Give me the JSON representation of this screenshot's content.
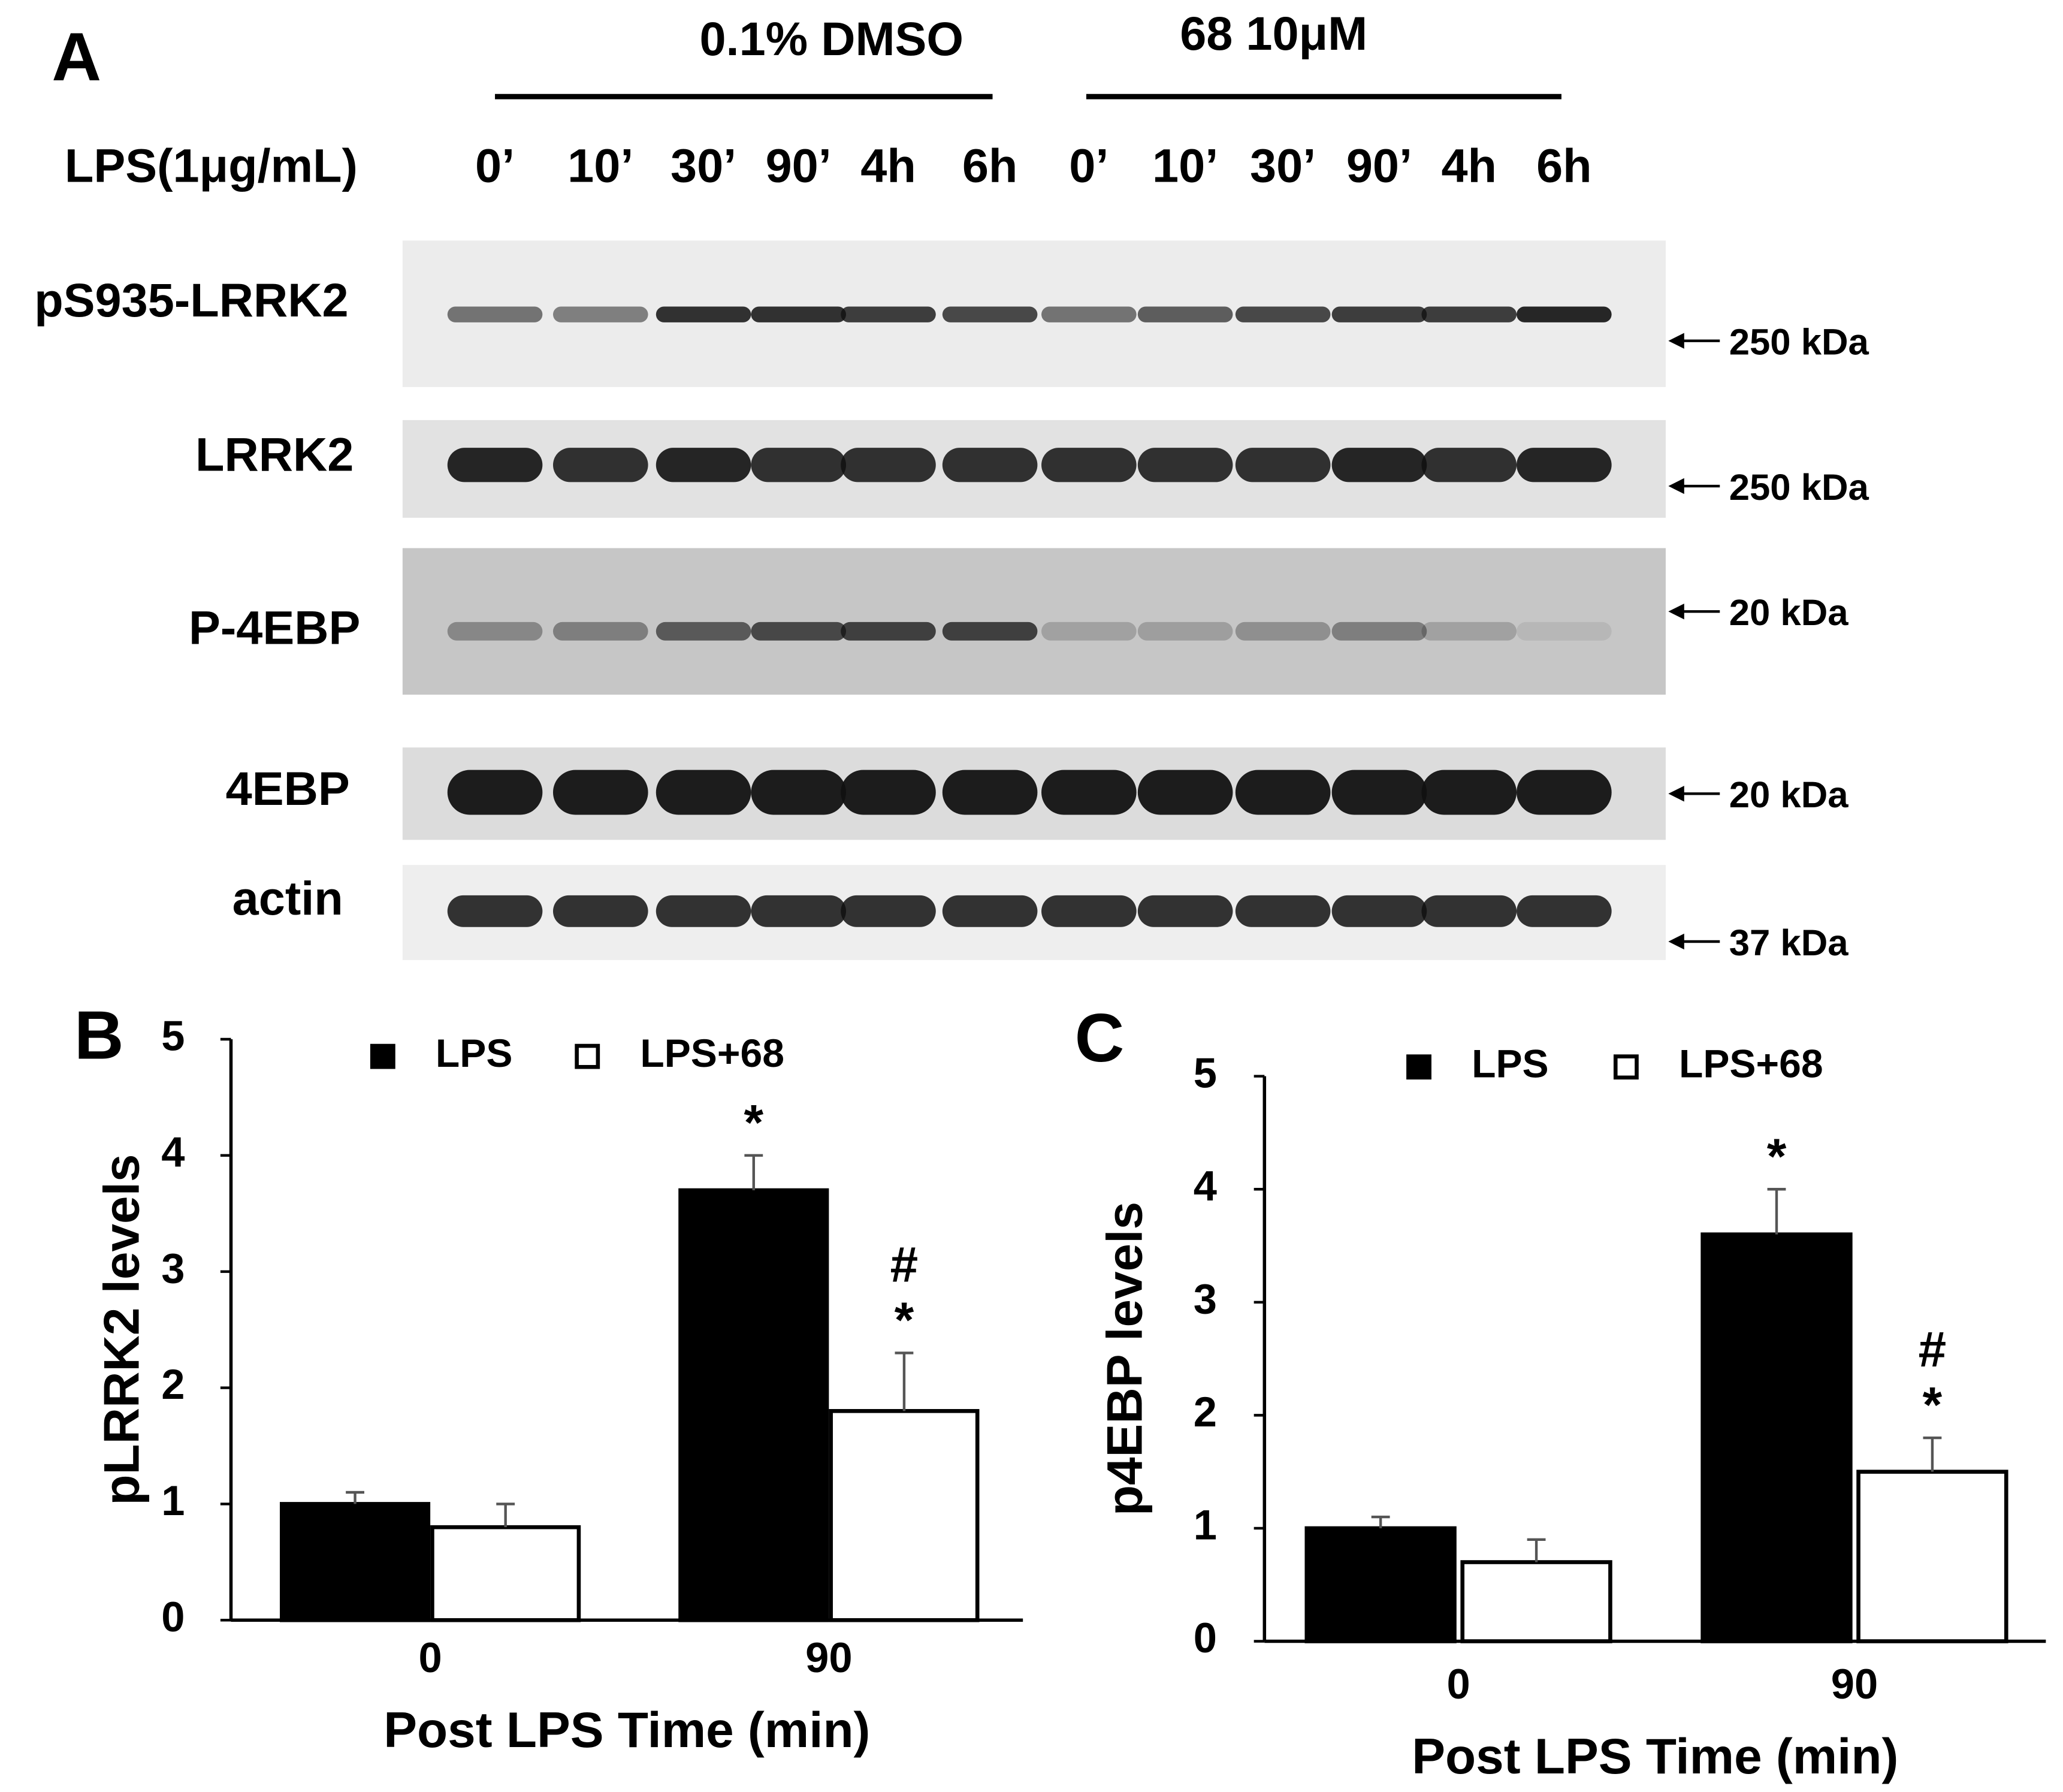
{
  "figure_a": {
    "panel_label": "A",
    "groups": [
      {
        "label": "0.1% DMSO"
      },
      {
        "label": "68 10μM"
      }
    ],
    "treatment": "LPS(1μg/mL)",
    "lanes": [
      "0’",
      "10’",
      "30’",
      "90’",
      "4h",
      "6h",
      "0’",
      "10’",
      "30’",
      "90’",
      "4h",
      "6h"
    ],
    "rows": [
      {
        "label": "pS935-LRRK2",
        "size": "250 kDa"
      },
      {
        "label": "LRRK2",
        "size": "250 kDa"
      },
      {
        "label": "P-4EBP",
        "size": "20 kDa"
      },
      {
        "label": "4EBP",
        "size": "20 kDa"
      },
      {
        "label": "actin",
        "size": "37 kDa"
      }
    ]
  },
  "chart_data": [
    {
      "type": "bar",
      "panel_label": "B",
      "ylabel": "pLRRK2 levels",
      "xlabel": "Post LPS Time (min)",
      "categories": [
        "0",
        "90"
      ],
      "series": [
        {
          "name": "LPS",
          "color": "#000000",
          "values": [
            1.0,
            3.7
          ],
          "errors": [
            0.1,
            0.3
          ],
          "annotations": [
            null,
            [
              "*"
            ]
          ]
        },
        {
          "name": "LPS+68",
          "color": "#ffffff",
          "values": [
            0.8,
            1.8
          ],
          "errors": [
            0.2,
            0.5
          ],
          "annotations": [
            null,
            [
              "#",
              "*"
            ]
          ]
        }
      ],
      "ylim": [
        0,
        5
      ],
      "yticks": [
        0,
        1,
        2,
        3,
        4,
        5
      ]
    },
    {
      "type": "bar",
      "panel_label": "C",
      "ylabel": "p4EBP levels",
      "xlabel": "Post LPS Time (min)",
      "categories": [
        "0",
        "90"
      ],
      "series": [
        {
          "name": "LPS",
          "color": "#000000",
          "values": [
            1.0,
            3.6
          ],
          "errors": [
            0.1,
            0.4
          ],
          "annotations": [
            null,
            [
              "*"
            ]
          ]
        },
        {
          "name": "LPS+68",
          "color": "#ffffff",
          "values": [
            0.7,
            1.5
          ],
          "errors": [
            0.2,
            0.3
          ],
          "annotations": [
            null,
            [
              "#",
              "*"
            ]
          ]
        }
      ],
      "ylim": [
        0,
        5
      ],
      "yticks": [
        0,
        1,
        2,
        3,
        4,
        5
      ]
    }
  ]
}
